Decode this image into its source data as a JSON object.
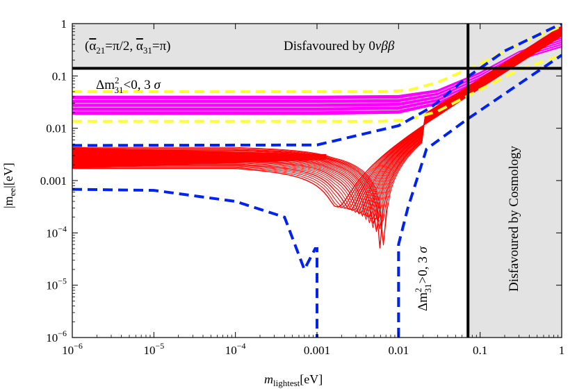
{
  "chart_data": {
    "type": "line",
    "x_scale": "log",
    "y_scale": "log",
    "xlim": [
      1e-06,
      1
    ],
    "ylim": [
      1e-06,
      1
    ],
    "xlabel": {
      "main": "m",
      "sub": "lightest",
      "unit": "[eV]"
    },
    "ylabel": {
      "main": "|m",
      "sub": "ee",
      "unit": "|[eV]"
    },
    "x_ticks": [
      {
        "value": 1e-06,
        "base": "10",
        "exp": "−6"
      },
      {
        "value": 1e-05,
        "base": "10",
        "exp": "−5"
      },
      {
        "value": 0.0001,
        "base": "10",
        "exp": "−4"
      },
      {
        "value": 0.001,
        "text": "0.001"
      },
      {
        "value": 0.01,
        "text": "0.01"
      },
      {
        "value": 0.1,
        "text": "0.1"
      },
      {
        "value": 1,
        "text": "1"
      }
    ],
    "y_ticks": [
      {
        "value": 1,
        "text": "1"
      },
      {
        "value": 0.1,
        "text": "0.1"
      },
      {
        "value": 0.01,
        "text": "0.01"
      },
      {
        "value": 0.001,
        "text": "0.001"
      },
      {
        "value": 0.0001,
        "base": "10",
        "exp": "−4"
      },
      {
        "value": 1e-05,
        "base": "10",
        "exp": "−5"
      },
      {
        "value": 1e-06,
        "base": "10",
        "exp": "−6"
      }
    ],
    "regions": {
      "disfavoured_0vbb": {
        "y_min": 0.14,
        "y_max": 1,
        "label": "Disfavoured by 0νββ",
        "color": "#e3e3e3"
      },
      "disfavoured_cosmology": {
        "x_min": 0.071,
        "x_max": 1,
        "label": "Disfavoured by Cosmology",
        "color": "#e3e3e3"
      }
    },
    "limits": {
      "mee_limit": 0.14,
      "mlightest_limit": 0.071
    },
    "annotations": {
      "phases": "(α̅21=π/2, α̅31=π)",
      "inverted": "Δm²31<0, 3 σ",
      "normal": "Δm²31>0, 3 σ"
    },
    "colors": {
      "inverted_band": "#ff00ff",
      "normal_band": "#ff0000",
      "inverted_3sigma": "#ffff33",
      "normal_3sigma": "#0022ee",
      "limits": "#000000"
    },
    "series": [
      {
        "name": "inverted-band-upper",
        "x": [
          1e-06,
          0.001,
          0.01,
          0.03,
          0.1,
          0.3,
          1
        ],
        "y": [
          0.042,
          0.042,
          0.043,
          0.055,
          0.12,
          0.3,
          0.55
        ]
      },
      {
        "name": "inverted-band-lower",
        "x": [
          1e-06,
          0.001,
          0.01,
          0.03,
          0.1,
          0.3,
          1
        ],
        "y": [
          0.018,
          0.018,
          0.019,
          0.028,
          0.07,
          0.2,
          0.35
        ]
      },
      {
        "name": "inverted-3sigma-upper",
        "x": [
          1e-06,
          0.006,
          0.013,
          0.03,
          0.1,
          0.3,
          1
        ],
        "y": [
          0.05,
          0.05,
          0.053,
          0.075,
          0.17,
          0.4,
          0.9
        ]
      },
      {
        "name": "inverted-3sigma-lower",
        "x": [
          1e-06,
          0.006,
          0.013,
          0.03,
          0.1,
          0.3,
          1
        ],
        "y": [
          0.0135,
          0.0135,
          0.0145,
          0.021,
          0.055,
          0.13,
          0.25
        ]
      },
      {
        "name": "normal-3sigma-upper",
        "x": [
          1e-06,
          0.001,
          0.01,
          0.025,
          0.07,
          0.2,
          1
        ],
        "y": [
          0.0047,
          0.0048,
          0.0112,
          0.025,
          0.095,
          0.3,
          1.0
        ]
      },
      {
        "name": "normal-3sigma-lower-left",
        "x": [
          1e-06,
          1e-05,
          0.0001,
          0.0004,
          0.0007,
          0.00095,
          0.001,
          0.001
        ],
        "y": [
          0.00068,
          0.00065,
          0.0004,
          0.0002,
          2e-05,
          5e-05,
          5e-05,
          1e-06
        ]
      },
      {
        "name": "normal-3sigma-lower-right",
        "x": [
          0.01,
          0.01,
          0.013,
          0.022,
          0.07,
          0.3,
          1
        ],
        "y": [
          1e-06,
          6e-05,
          0.0003,
          0.004,
          0.015,
          0.07,
          0.25
        ]
      }
    ]
  }
}
